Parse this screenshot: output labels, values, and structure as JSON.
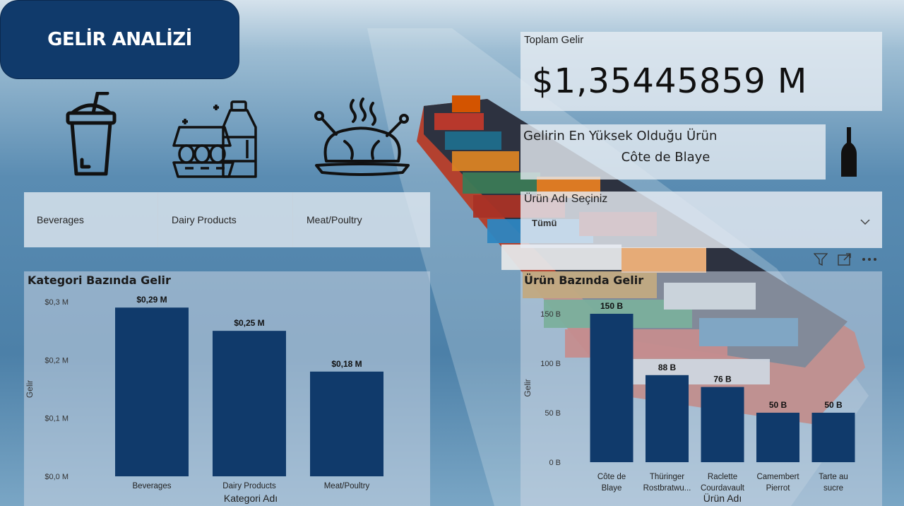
{
  "page": {
    "title": "GELİR ANALİZİ"
  },
  "categories": [
    "Beverages",
    "Dairy Products",
    "Meat/Poultry"
  ],
  "kpi": {
    "label": "Toplam Gelir",
    "value": "$1,35445859 M"
  },
  "top_product": {
    "label": "Gelirin En Yüksek Olduğu Ürün",
    "value": "Côte de Blaye"
  },
  "slicer": {
    "label": "Ürün Adı Seçiniz",
    "selected": "Tümü"
  },
  "icons": {
    "drink": "drink-cup-icon",
    "dairy": "dairy-eggs-milk-icon",
    "meat": "roast-chicken-icon",
    "bottle": "wine-bottle-icon",
    "filter": "filter-icon",
    "focus": "focus-mode-icon",
    "more": "more-options-icon",
    "chevron": "chevron-down-icon"
  },
  "colors": {
    "bar": "#103a6b",
    "title_bg": "#103a6b"
  },
  "chart_data": [
    {
      "type": "bar",
      "title": "Kategori Bazında Gelir",
      "xlabel": "Kategori Adı",
      "ylabel": "Gelir",
      "categories": [
        "Beverages",
        "Dairy Products",
        "Meat/Poultry"
      ],
      "values": [
        0.29,
        0.25,
        0.18
      ],
      "data_labels": [
        "$0,29 M",
        "$0,25 M",
        "$0,18 M"
      ],
      "yticks": [
        0,
        0.1,
        0.2,
        0.3
      ],
      "ytick_labels": [
        "$0,0 M",
        "$0,1 M",
        "$0,2 M",
        "$0,3 M"
      ],
      "ylim": [
        0,
        0.3
      ]
    },
    {
      "type": "bar",
      "title": "Ürün Bazında Gelir",
      "xlabel": "Ürün Adı",
      "ylabel": "Gelir",
      "categories": [
        "Côte de Blaye",
        "Thüringer Rostbratwu...",
        "Raclette Courdavault",
        "Camembert Pierrot",
        "Tarte au sucre"
      ],
      "category_lines": [
        [
          "Côte de",
          "Blaye"
        ],
        [
          "Thüringer",
          "Rostbratwu..."
        ],
        [
          "Raclette",
          "Courdavault"
        ],
        [
          "Camembert",
          "Pierrot"
        ],
        [
          "Tarte au",
          "sucre"
        ]
      ],
      "values": [
        150,
        88,
        76,
        50,
        50
      ],
      "data_labels": [
        "150 B",
        "88 B",
        "76 B",
        "50 B",
        "50 B"
      ],
      "yticks": [
        0,
        50,
        100,
        150
      ],
      "ytick_labels": [
        "0 B",
        "50 B",
        "100 B",
        "150 B"
      ],
      "ylim": [
        0,
        150
      ]
    }
  ]
}
